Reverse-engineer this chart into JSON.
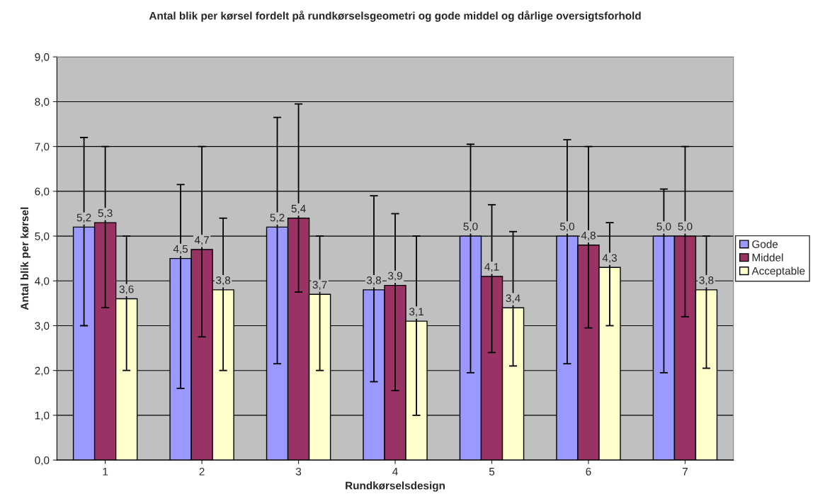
{
  "chart_data": {
    "type": "bar",
    "title": "Antal blik per kørsel fordelt på rundkørselsgeometri og gode middel og dårlige oversigtsforhold",
    "xlabel": "Rundkørselsdesign",
    "ylabel": "Antal blik per kørsel",
    "categories": [
      "1",
      "2",
      "3",
      "4",
      "5",
      "6",
      "7"
    ],
    "series": [
      {
        "name": "Gode",
        "color": "#9999ff",
        "values": [
          5.2,
          4.5,
          5.2,
          3.8,
          5.0,
          5.0,
          5.0
        ],
        "value_labels": [
          "5,2",
          "4,5",
          "5,2",
          "3,8",
          "5,0",
          "5,0",
          "5,0"
        ],
        "errors": [
          [
            3.0,
            7.2
          ],
          [
            1.6,
            6.15
          ],
          [
            2.15,
            7.65
          ],
          [
            1.75,
            5.9
          ],
          [
            1.95,
            7.05
          ],
          [
            2.15,
            7.15
          ],
          [
            1.95,
            6.05
          ]
        ]
      },
      {
        "name": "Middel",
        "color": "#993366",
        "values": [
          5.3,
          4.7,
          5.4,
          3.9,
          4.1,
          4.8,
          5.0
        ],
        "value_labels": [
          "5,3",
          "4,7",
          "5,4",
          "3,9",
          "4,1",
          "4,8",
          "5,0"
        ],
        "errors": [
          [
            3.4,
            7.0
          ],
          [
            2.75,
            7.0
          ],
          [
            3.75,
            7.95
          ],
          [
            1.55,
            5.5
          ],
          [
            2.4,
            5.7
          ],
          [
            2.95,
            7.0
          ],
          [
            3.2,
            7.0
          ]
        ]
      },
      {
        "name": "Acceptable",
        "color": "#ffffcc",
        "values": [
          3.6,
          3.8,
          3.7,
          3.1,
          3.4,
          4.3,
          3.8
        ],
        "value_labels": [
          "3,6",
          "3,8",
          "3,7",
          "3,1",
          "3,4",
          "4,3",
          "3,8"
        ],
        "errors": [
          [
            2.0,
            5.0
          ],
          [
            2.0,
            5.4
          ],
          [
            2.0,
            5.0
          ],
          [
            1.0,
            5.0
          ],
          [
            2.1,
            5.1
          ],
          [
            3.0,
            5.3
          ],
          [
            2.05,
            5.0
          ]
        ]
      }
    ],
    "ylim": [
      0,
      9
    ],
    "yticks": [
      {
        "value": 0,
        "label": "0,0"
      },
      {
        "value": 1,
        "label": "1,0"
      },
      {
        "value": 2,
        "label": "2,0"
      },
      {
        "value": 3,
        "label": "3,0"
      },
      {
        "value": 4,
        "label": "4,0"
      },
      {
        "value": 5,
        "label": "5,0"
      },
      {
        "value": 6,
        "label": "6,0"
      },
      {
        "value": 7,
        "label": "7,0"
      },
      {
        "value": 8,
        "label": "8,0"
      },
      {
        "value": 9,
        "label": "9,0"
      }
    ],
    "grid": "y",
    "legend": "right"
  }
}
